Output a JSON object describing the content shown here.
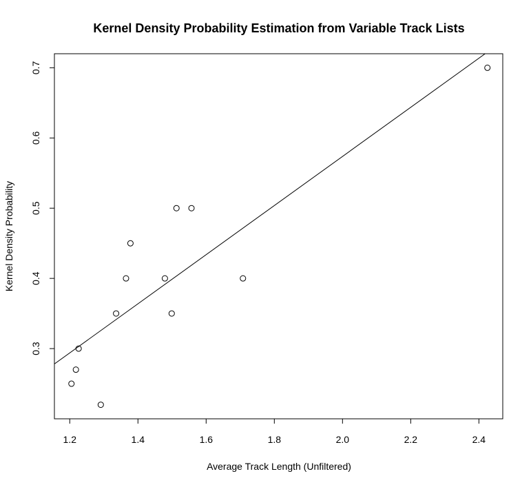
{
  "chart_data": {
    "type": "scatter",
    "title": "Kernel Density Probability Estimation from Variable Track Lists",
    "xlabel": "Average Track Length (Unfiltered)",
    "ylabel": "Kernel Density Probability",
    "xlim": [
      1.155,
      2.47
    ],
    "ylim": [
      0.2,
      0.72
    ],
    "x_ticks": [
      1.2,
      1.4,
      1.6,
      1.8,
      2.0,
      2.2,
      2.4
    ],
    "x_tick_labels": [
      "1.2",
      "1.4",
      "1.6",
      "1.8",
      "2.0",
      "2.2",
      "2.4"
    ],
    "y_ticks": [
      0.3,
      0.4,
      0.5,
      0.6,
      0.7
    ],
    "y_tick_labels": [
      "0.3",
      "0.4",
      "0.5",
      "0.6",
      "0.7"
    ],
    "grid": false,
    "points": [
      {
        "x": 1.205,
        "y": 0.25
      },
      {
        "x": 1.218,
        "y": 0.27
      },
      {
        "x": 1.226,
        "y": 0.3
      },
      {
        "x": 1.291,
        "y": 0.22
      },
      {
        "x": 1.336,
        "y": 0.35
      },
      {
        "x": 1.365,
        "y": 0.4
      },
      {
        "x": 1.378,
        "y": 0.45
      },
      {
        "x": 1.479,
        "y": 0.4
      },
      {
        "x": 1.499,
        "y": 0.35
      },
      {
        "x": 1.513,
        "y": 0.5
      },
      {
        "x": 1.557,
        "y": 0.5
      },
      {
        "x": 1.708,
        "y": 0.4
      },
      {
        "x": 2.425,
        "y": 0.7
      }
    ],
    "fit_line": {
      "slope": 0.3498,
      "intercept": -0.1259
    }
  }
}
